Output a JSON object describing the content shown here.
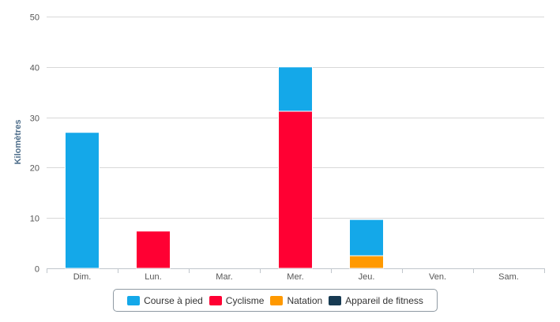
{
  "chart_data": {
    "type": "bar",
    "stacked": true,
    "ylabel": "Kilomètres",
    "xlabel": "",
    "ylim": [
      0,
      50
    ],
    "yticks": [
      0,
      10,
      20,
      30,
      40,
      50
    ],
    "grid": true,
    "legend_position": "bottom",
    "categories": [
      "Dim.",
      "Lun.",
      "Mar.",
      "Mer.",
      "Jeu.",
      "Ven.",
      "Sam."
    ],
    "series": [
      {
        "name": "Appareil de fitness",
        "color": "#173a52",
        "values": [
          0,
          0,
          0,
          0,
          0,
          0,
          0
        ]
      },
      {
        "name": "Natation",
        "color": "#ff9900",
        "values": [
          0,
          0,
          0,
          0,
          2.5,
          0,
          0
        ]
      },
      {
        "name": "Cyclisme",
        "color": "#ff0033",
        "values": [
          0,
          7.4,
          0,
          31.2,
          0,
          0,
          0
        ]
      },
      {
        "name": "Course à pied",
        "color": "#14a8e9",
        "values": [
          27,
          0,
          0,
          8.8,
          7.2,
          0,
          0
        ]
      }
    ],
    "legend_order": [
      "Course à pied",
      "Cyclisme",
      "Natation",
      "Appareil de fitness"
    ]
  }
}
